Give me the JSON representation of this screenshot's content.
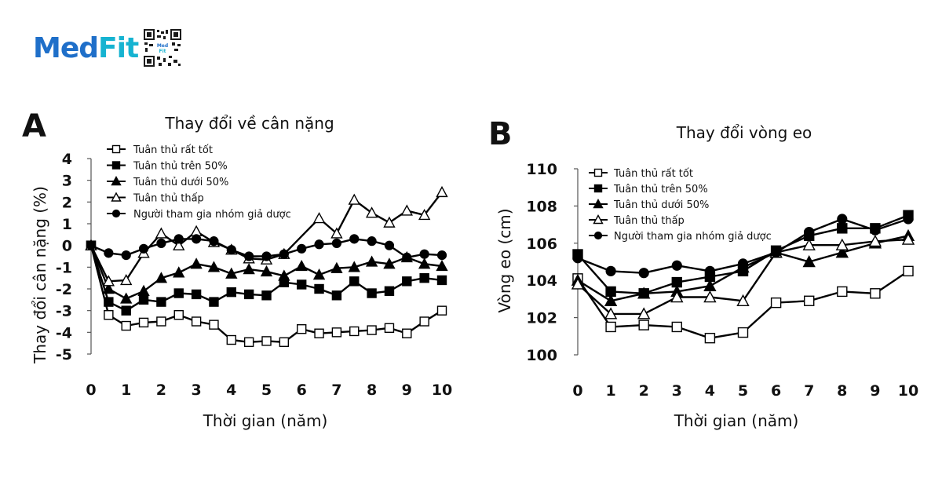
{
  "brand": {
    "part1": "Med",
    "part2": "Fit",
    "qr_caption": "Med Fit"
  },
  "chart_data": [
    {
      "type": "line",
      "panel_letter": "A",
      "title": "Thay đổi về cân nặng",
      "xlabel": "Thời gian (năm)",
      "ylabel": "Thay đổi cân nặng (%)",
      "xlim": [
        0,
        10
      ],
      "ylim": [
        -5,
        4
      ],
      "xticks": [
        0,
        1,
        2,
        3,
        4,
        5,
        6,
        7,
        8,
        9,
        10
      ],
      "yticks": [
        4,
        3,
        2,
        1,
        0,
        -1,
        -2,
        -3,
        -4,
        -5
      ],
      "grid": false,
      "legend_position": "top-left",
      "x": [
        0,
        0.5,
        1,
        1.5,
        2,
        2.5,
        3,
        3.5,
        4,
        4.5,
        5,
        5.5,
        6,
        6.5,
        7,
        7.5,
        8,
        8.5,
        9,
        9.5,
        10
      ],
      "series": [
        {
          "name": "Tuân thủ rất tốt",
          "marker": "square-open",
          "values": [
            0,
            -3.2,
            -3.7,
            -3.55,
            -3.5,
            -3.2,
            -3.5,
            -3.65,
            -4.35,
            -4.45,
            -4.4,
            -4.45,
            -3.85,
            -4.05,
            -4.0,
            -3.95,
            -3.9,
            -3.8,
            -4.05,
            -3.5,
            -3.0
          ]
        },
        {
          "name": "Tuân thủ trên 50%",
          "marker": "square-filled",
          "values": [
            0,
            -2.6,
            -3.0,
            -2.5,
            -2.6,
            -2.2,
            -2.25,
            -2.6,
            -2.15,
            -2.25,
            -2.3,
            -1.7,
            -1.8,
            -2.0,
            -2.3,
            -1.65,
            -2.2,
            -2.1,
            -1.65,
            -1.5,
            -1.6
          ]
        },
        {
          "name": "Tuân thủ dưới 50%",
          "marker": "triangle-filled",
          "values": [
            0,
            -2.0,
            -2.45,
            -2.1,
            -1.5,
            -1.25,
            -0.85,
            -1.0,
            -1.3,
            -1.1,
            -1.2,
            -1.4,
            -0.95,
            -1.35,
            -1.05,
            -1.0,
            -0.75,
            -0.85,
            -0.55,
            -0.85,
            -0.95
          ]
        },
        {
          "name": "Tuân thủ thấp",
          "marker": "triangle-open",
          "values": [
            0,
            -1.65,
            -1.6,
            -0.35,
            0.55,
            0.0,
            0.65,
            0.15,
            -0.2,
            -0.6,
            -0.65,
            -0.4,
            null,
            1.25,
            0.55,
            2.1,
            1.5,
            1.05,
            1.6,
            1.4,
            2.45
          ]
        },
        {
          "name": "Người tham gia nhóm giả dược",
          "marker": "circle-filled",
          "values": [
            0,
            -0.35,
            -0.45,
            -0.15,
            0.1,
            0.3,
            0.3,
            0.2,
            -0.2,
            -0.5,
            -0.5,
            -0.4,
            -0.15,
            0.05,
            0.1,
            0.3,
            0.2,
            0.0,
            -0.55,
            -0.4,
            -0.45
          ]
        }
      ]
    },
    {
      "type": "line",
      "panel_letter": "B",
      "title": "Thay đổi vòng eo",
      "xlabel": "Thời gian (năm)",
      "ylabel": "Vòng eo (cm)",
      "xlim": [
        0,
        10
      ],
      "ylim": [
        100,
        110
      ],
      "xticks": [
        0,
        1,
        2,
        3,
        4,
        5,
        6,
        7,
        8,
        9,
        10
      ],
      "yticks": [
        110,
        108,
        106,
        104,
        102,
        100
      ],
      "grid": false,
      "legend_position": "top-left",
      "x": [
        0,
        1,
        2,
        3,
        4,
        5,
        6,
        7,
        8,
        9,
        10
      ],
      "series": [
        {
          "name": "Tuân thủ rất tốt",
          "marker": "square-open",
          "values": [
            104.1,
            101.5,
            101.6,
            101.5,
            100.9,
            101.2,
            102.8,
            102.9,
            103.4,
            103.3,
            104.5
          ]
        },
        {
          "name": "Tuân thủ trên 50%",
          "marker": "square-filled",
          "values": [
            105.4,
            103.4,
            103.3,
            103.9,
            104.2,
            104.5,
            105.6,
            106.4,
            106.8,
            106.8,
            107.5
          ]
        },
        {
          "name": "Tuân thủ dưới 50%",
          "marker": "triangle-filled",
          "values": [
            104.0,
            102.9,
            103.3,
            103.4,
            103.7,
            104.7,
            105.5,
            105.0,
            105.5,
            106.0,
            106.4
          ]
        },
        {
          "name": "Tuân thủ thấp",
          "marker": "triangle-open",
          "values": [
            103.8,
            102.2,
            102.2,
            103.1,
            103.1,
            102.9,
            105.5,
            105.9,
            105.9,
            106.1,
            106.2
          ]
        },
        {
          "name": "Người tham gia nhóm giả dược",
          "marker": "circle-filled",
          "values": [
            105.2,
            104.5,
            104.4,
            104.8,
            104.5,
            104.9,
            105.5,
            106.6,
            107.3,
            106.7,
            107.3
          ]
        }
      ]
    }
  ]
}
